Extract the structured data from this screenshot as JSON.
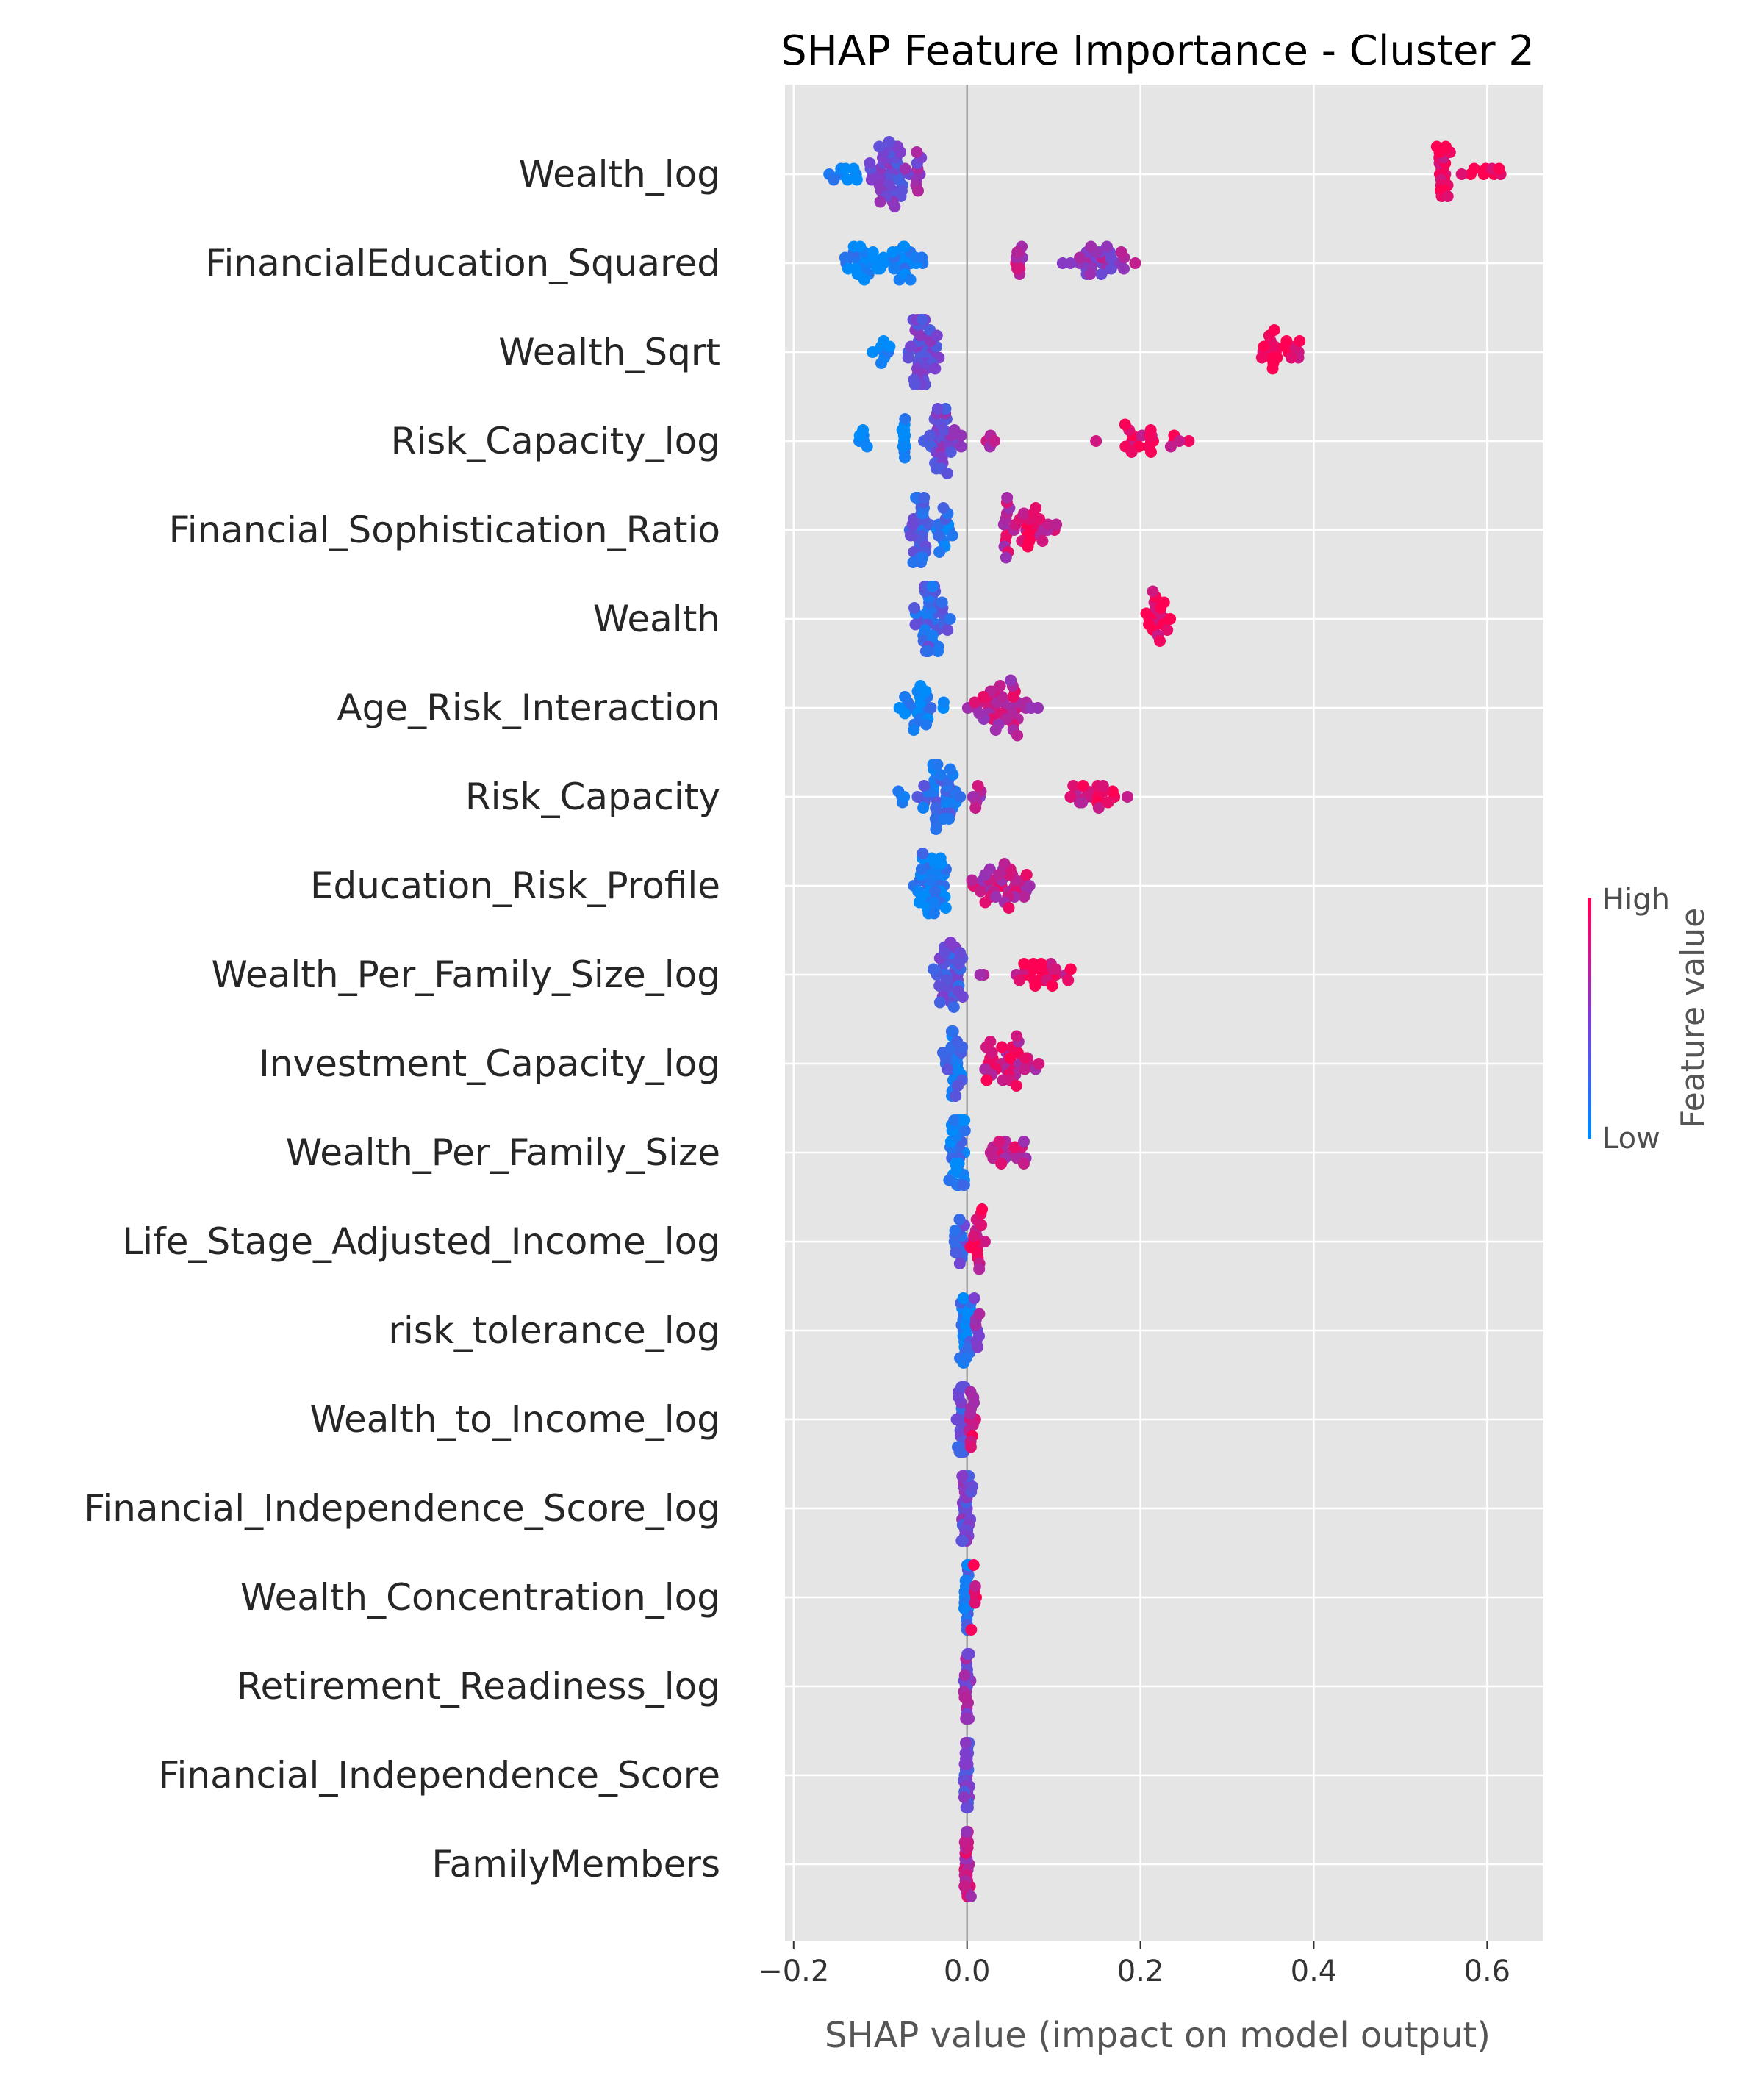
{
  "chart_data": {
    "type": "scatter",
    "subtype": "shap-beeswarm",
    "title": "SHAP Feature Importance - Cluster 2",
    "xlabel": "SHAP value (impact on model output)",
    "ylabel": "",
    "xlim": [
      -0.21,
      0.665
    ],
    "xticks": [
      -0.2,
      0.0,
      0.2,
      0.4,
      0.6
    ],
    "xtick_labels": [
      "−0.2",
      "0.0",
      "0.2",
      "0.4",
      "0.6"
    ],
    "grid": true,
    "colorbar": {
      "title": "Feature value",
      "high_label": "High",
      "low_label": "Low",
      "low_color": "#008bfb",
      "high_color": "#ff0052"
    },
    "features": [
      {
        "name": "Wealth_log",
        "clusters": [
          {
            "x0": -0.17,
            "x1": -0.12,
            "c": 0.02,
            "n": 10
          },
          {
            "x0": -0.12,
            "x1": -0.06,
            "c": 0.45,
            "n": 40
          },
          {
            "x0": -0.06,
            "x1": -0.05,
            "c": 0.55,
            "n": 8
          },
          {
            "x0": 0.535,
            "x1": 0.56,
            "c": 0.95,
            "n": 20
          },
          {
            "x0": 0.56,
            "x1": 0.625,
            "c": 0.97,
            "n": 9
          }
        ]
      },
      {
        "name": "FinancialEducation_Squared",
        "clusters": [
          {
            "x0": -0.145,
            "x1": -0.04,
            "c": 0.03,
            "n": 45
          },
          {
            "x0": 0.055,
            "x1": 0.065,
            "c": 0.7,
            "n": 10
          },
          {
            "x0": 0.1,
            "x1": 0.2,
            "c": 0.6,
            "n": 30
          }
        ]
      },
      {
        "name": "Wealth_Sqrt",
        "clusters": [
          {
            "x0": -0.115,
            "x1": -0.08,
            "c": 0.02,
            "n": 8
          },
          {
            "x0": -0.075,
            "x1": -0.03,
            "c": 0.4,
            "n": 40
          },
          {
            "x0": 0.34,
            "x1": 0.36,
            "c": 0.95,
            "n": 14
          },
          {
            "x0": 0.36,
            "x1": 0.4,
            "c": 0.97,
            "n": 8
          }
        ]
      },
      {
        "name": "Risk_Capacity_log",
        "clusters": [
          {
            "x0": -0.13,
            "x1": -0.11,
            "c": 0.02,
            "n": 6
          },
          {
            "x0": -0.075,
            "x1": -0.07,
            "c": 0.02,
            "n": 12
          },
          {
            "x0": -0.05,
            "x1": 0.0,
            "c": 0.45,
            "n": 35
          },
          {
            "x0": 0.02,
            "x1": 0.035,
            "c": 0.8,
            "n": 4
          },
          {
            "x0": 0.14,
            "x1": 0.26,
            "c": 0.92,
            "n": 22
          }
        ]
      },
      {
        "name": "Financial_Sophistication_Ratio",
        "clusters": [
          {
            "x0": -0.07,
            "x1": -0.04,
            "c": 0.3,
            "n": 30
          },
          {
            "x0": -0.04,
            "x1": -0.015,
            "c": 0.15,
            "n": 15
          },
          {
            "x0": 0.04,
            "x1": 0.05,
            "c": 0.75,
            "n": 12
          },
          {
            "x0": 0.05,
            "x1": 0.11,
            "c": 0.85,
            "n": 25
          }
        ]
      },
      {
        "name": "Wealth",
        "clusters": [
          {
            "x0": -0.065,
            "x1": -0.015,
            "c": 0.25,
            "n": 40
          },
          {
            "x0": 0.2,
            "x1": 0.24,
            "c": 0.95,
            "n": 20
          }
        ]
      },
      {
        "name": "Age_Risk_Interaction",
        "clusters": [
          {
            "x0": -0.085,
            "x1": -0.035,
            "c": 0.05,
            "n": 22
          },
          {
            "x0": -0.03,
            "x1": -0.025,
            "c": 0.02,
            "n": 2
          },
          {
            "x0": 0.0,
            "x1": 0.09,
            "c": 0.75,
            "n": 40
          }
        ]
      },
      {
        "name": "Risk_Capacity",
        "clusters": [
          {
            "x0": -0.085,
            "x1": -0.07,
            "c": 0.02,
            "n": 4
          },
          {
            "x0": -0.06,
            "x1": -0.005,
            "c": 0.2,
            "n": 40
          },
          {
            "x0": 0.005,
            "x1": 0.02,
            "c": 0.7,
            "n": 6
          },
          {
            "x0": 0.11,
            "x1": 0.19,
            "c": 0.88,
            "n": 22
          }
        ]
      },
      {
        "name": "Education_Risk_Profile",
        "clusters": [
          {
            "x0": -0.065,
            "x1": -0.02,
            "c": 0.08,
            "n": 40
          },
          {
            "x0": 0.0,
            "x1": 0.085,
            "c": 0.75,
            "n": 38
          }
        ]
      },
      {
        "name": "Wealth_Per_Family_Size_log",
        "clusters": [
          {
            "x0": -0.04,
            "x1": 0.0,
            "c": 0.35,
            "n": 35
          },
          {
            "x0": 0.015,
            "x1": 0.02,
            "c": 0.7,
            "n": 2
          },
          {
            "x0": 0.05,
            "x1": 0.125,
            "c": 0.9,
            "n": 24
          }
        ]
      },
      {
        "name": "Investment_Capacity_log",
        "clusters": [
          {
            "x0": -0.03,
            "x1": 0.0,
            "c": 0.2,
            "n": 30
          },
          {
            "x0": 0.0,
            "x1": 0.09,
            "c": 0.82,
            "n": 35
          }
        ]
      },
      {
        "name": "Wealth_Per_Family_Size",
        "clusters": [
          {
            "x0": -0.025,
            "x1": 0.0,
            "c": 0.1,
            "n": 35
          },
          {
            "x0": 0.005,
            "x1": 0.075,
            "c": 0.78,
            "n": 18
          }
        ]
      },
      {
        "name": "Life_Stage_Adjusted_Income_log",
        "clusters": [
          {
            "x0": -0.02,
            "x1": 0.0,
            "c": 0.3,
            "n": 14
          },
          {
            "x0": 0.0,
            "x1": 0.022,
            "c": 0.85,
            "n": 16
          }
        ]
      },
      {
        "name": "risk_tolerance_log",
        "clusters": [
          {
            "x0": -0.01,
            "x1": 0.005,
            "c": 0.12,
            "n": 25
          },
          {
            "x0": 0.005,
            "x1": 0.015,
            "c": 0.6,
            "n": 8
          }
        ]
      },
      {
        "name": "Wealth_to_Income_log",
        "clusters": [
          {
            "x0": -0.015,
            "x1": 0.0,
            "c": 0.35,
            "n": 20
          },
          {
            "x0": 0.0,
            "x1": 0.012,
            "c": 0.82,
            "n": 12
          }
        ]
      },
      {
        "name": "Financial_Independence_Score_log",
        "clusters": [
          {
            "x0": -0.01,
            "x1": 0.008,
            "c": 0.45,
            "n": 28
          }
        ]
      },
      {
        "name": "Wealth_Concentration_log",
        "clusters": [
          {
            "x0": -0.005,
            "x1": 0.004,
            "c": 0.15,
            "n": 22
          },
          {
            "x0": 0.004,
            "x1": 0.012,
            "c": 0.9,
            "n": 6
          }
        ]
      },
      {
        "name": "Retirement_Readiness_log",
        "clusters": [
          {
            "x0": -0.005,
            "x1": 0.005,
            "c": 0.55,
            "n": 26
          }
        ]
      },
      {
        "name": "Financial_Independence_Score",
        "clusters": [
          {
            "x0": -0.005,
            "x1": 0.005,
            "c": 0.4,
            "n": 26
          }
        ]
      },
      {
        "name": "FamilyMembers",
        "clusters": [
          {
            "x0": -0.005,
            "x1": 0.005,
            "c": 0.75,
            "n": 26
          }
        ]
      }
    ]
  }
}
